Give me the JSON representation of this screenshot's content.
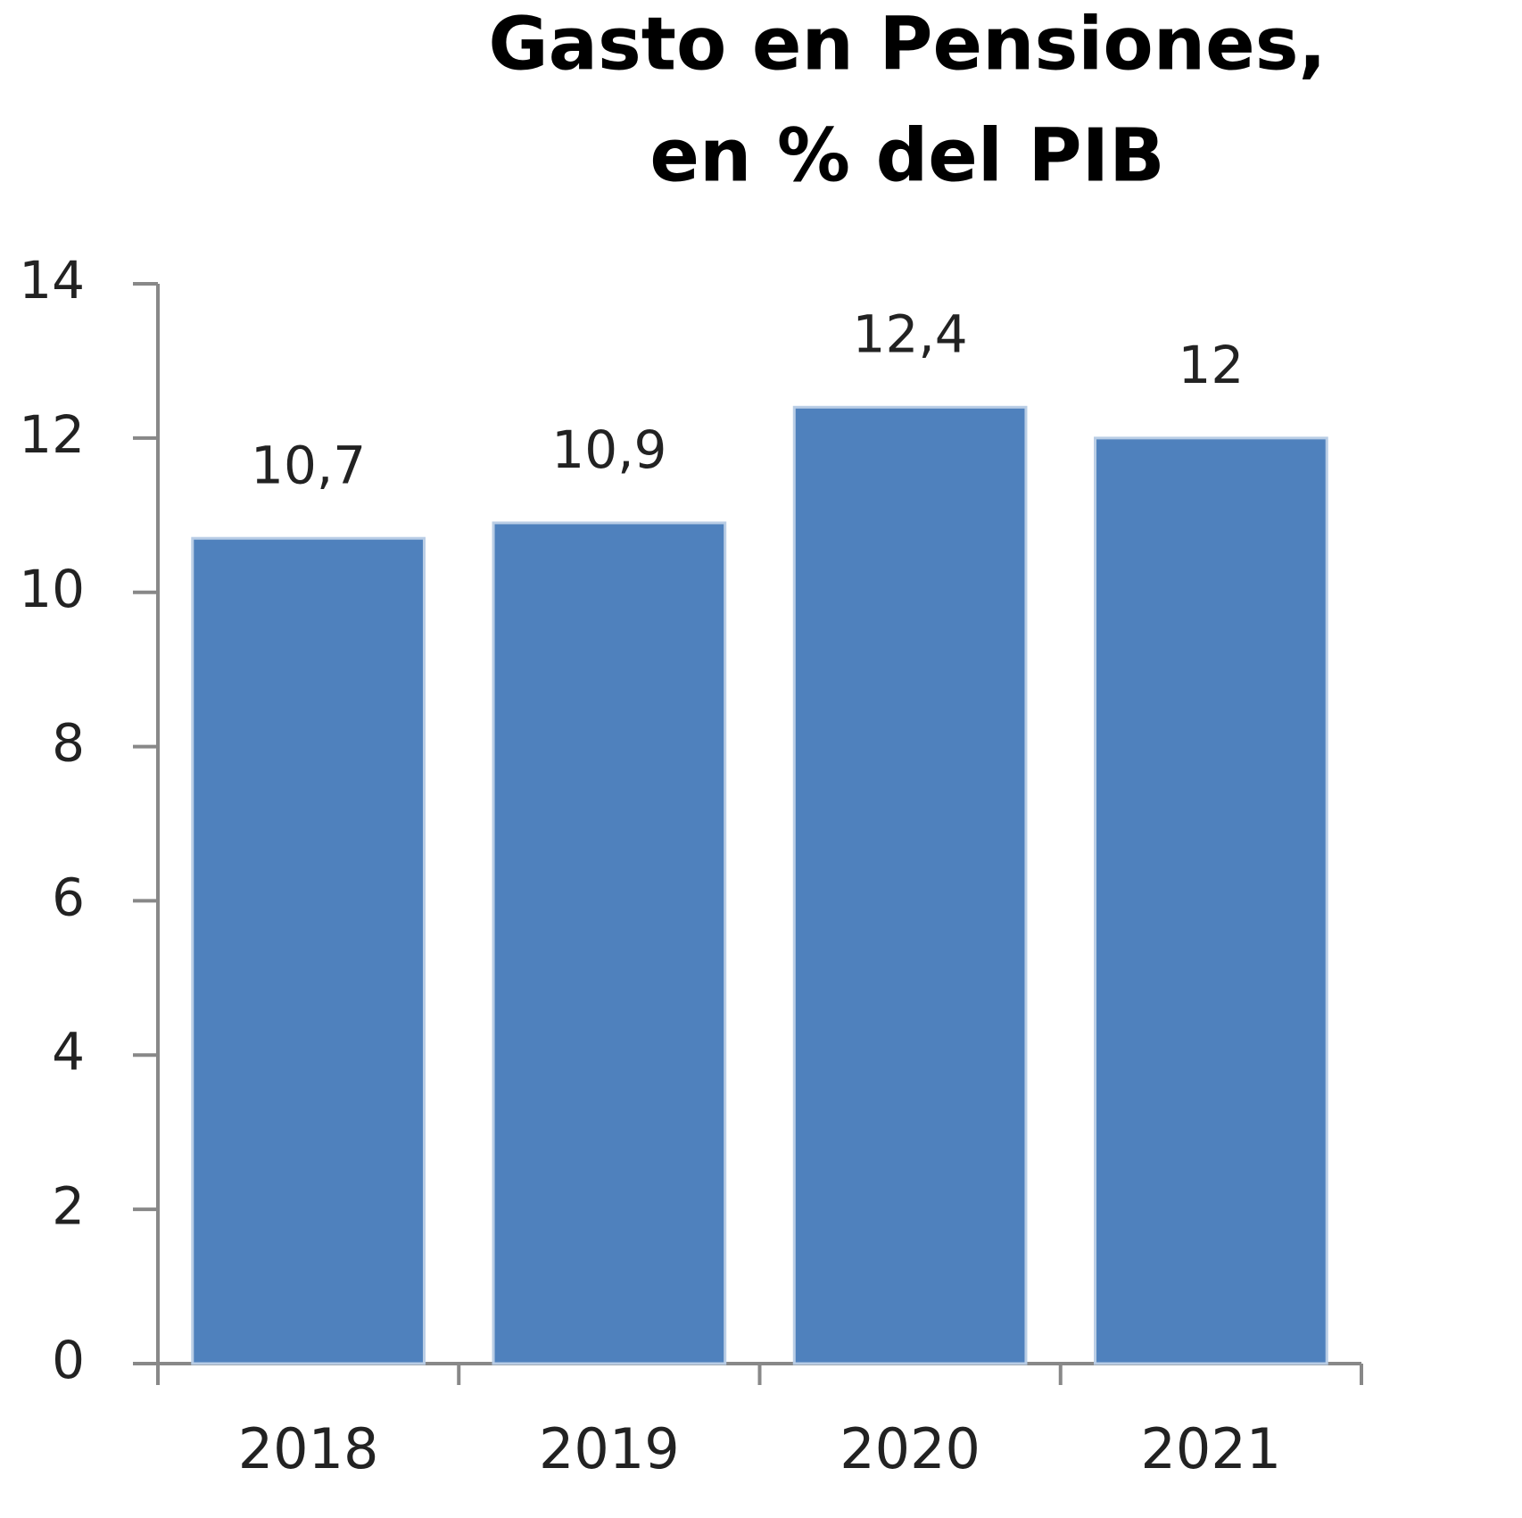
{
  "chart_data": {
    "type": "bar",
    "title": [
      "Gasto en Pensiones,",
      "en % del PIB"
    ],
    "categories": [
      "2018",
      "2019",
      "2020",
      "2021"
    ],
    "values": [
      10.7,
      10.9,
      12.4,
      12
    ],
    "value_labels": [
      "10,7",
      "10,9",
      "12,4",
      "12"
    ],
    "color": "#4f81bd",
    "ylim": [
      0,
      14
    ],
    "yticks": [
      0,
      2,
      4,
      6,
      8,
      10,
      12,
      14
    ],
    "grid": false
  }
}
